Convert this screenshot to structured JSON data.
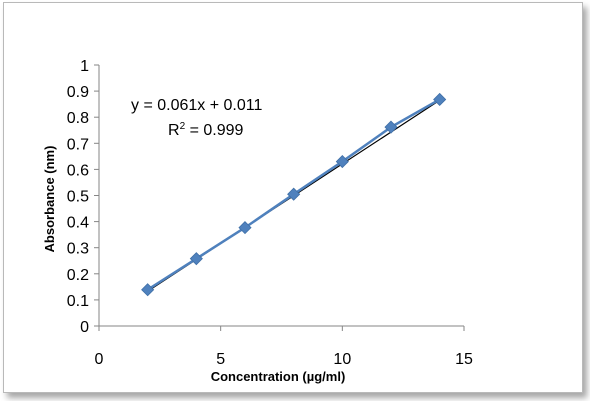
{
  "chart_data": {
    "type": "scatter",
    "title": "",
    "xlabel": "Concentration (µg/ml)",
    "ylabel": "Absorbance (nm)",
    "xlim": [
      0,
      15
    ],
    "ylim": [
      0,
      1
    ],
    "xticks": [
      0,
      5,
      10,
      15
    ],
    "yticks": [
      0,
      0.1,
      0.2,
      0.3,
      0.4,
      0.5,
      0.6,
      0.7,
      0.8,
      0.9,
      1
    ],
    "grid": false,
    "legend": "none",
    "series": [
      {
        "x": [
          2,
          4,
          6,
          8,
          10,
          12,
          14
        ],
        "y": [
          0.139,
          0.258,
          0.377,
          0.505,
          0.63,
          0.762,
          0.868
        ],
        "color": "#4f81bd",
        "marker": "diamond",
        "connect": true
      }
    ],
    "trendline": {
      "type": "linear",
      "slope": 0.061,
      "intercept": 0.011,
      "x_range": [
        2,
        14
      ],
      "color": "#000000",
      "equation": "y = 0.061x + 0.011",
      "r2_prefix": "R",
      "r2_sup": "2",
      "r2_value": " = 0.999"
    }
  }
}
